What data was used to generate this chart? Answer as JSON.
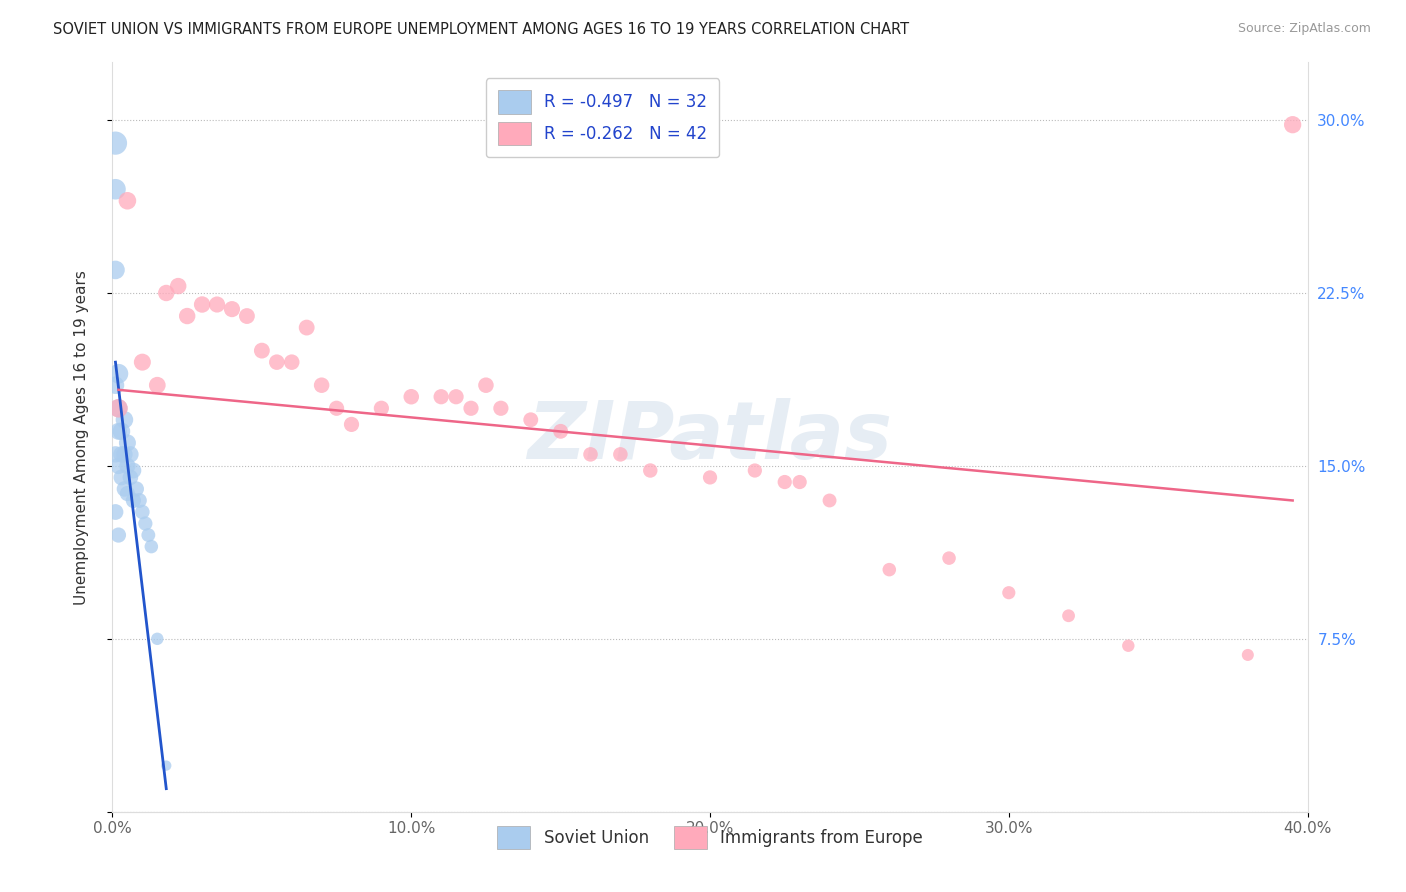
{
  "title": "SOVIET UNION VS IMMIGRANTS FROM EUROPE UNEMPLOYMENT AMONG AGES 16 TO 19 YEARS CORRELATION CHART",
  "source": "Source: ZipAtlas.com",
  "ylabel": "Unemployment Among Ages 16 to 19 years",
  "xlim": [
    0.0,
    0.4
  ],
  "ylim": [
    0.0,
    0.325
  ],
  "xticks": [
    0.0,
    0.1,
    0.2,
    0.3,
    0.4
  ],
  "xticklabels": [
    "0.0%",
    "10.0%",
    "20.0%",
    "30.0%",
    "40.0%"
  ],
  "yticks": [
    0.0,
    0.075,
    0.15,
    0.225,
    0.3
  ],
  "yticklabels_right": [
    "",
    "7.5%",
    "15.0%",
    "22.5%",
    "30.0%"
  ],
  "legend1_label": "R = -0.497   N = 32",
  "legend2_label": "R = -0.262   N = 42",
  "legend_bottom1": "Soviet Union",
  "legend_bottom2": "Immigrants from Europe",
  "blue_color": "#AACCEE",
  "pink_color": "#FFAABB",
  "blue_line_color": "#2255CC",
  "pink_line_color": "#EE6688",
  "watermark": "ZIPatlas",
  "soviet_x": [
    0.001,
    0.001,
    0.001,
    0.001,
    0.001,
    0.001,
    0.002,
    0.002,
    0.002,
    0.002,
    0.002,
    0.003,
    0.003,
    0.003,
    0.004,
    0.004,
    0.004,
    0.005,
    0.005,
    0.005,
    0.006,
    0.006,
    0.007,
    0.007,
    0.008,
    0.009,
    0.01,
    0.011,
    0.012,
    0.013,
    0.015,
    0.018
  ],
  "soviet_y": [
    0.29,
    0.27,
    0.235,
    0.185,
    0.155,
    0.13,
    0.19,
    0.175,
    0.165,
    0.15,
    0.12,
    0.165,
    0.155,
    0.145,
    0.17,
    0.155,
    0.14,
    0.16,
    0.15,
    0.138,
    0.155,
    0.145,
    0.148,
    0.135,
    0.14,
    0.135,
    0.13,
    0.125,
    0.12,
    0.115,
    0.075,
    0.02
  ],
  "soviet_sizes": [
    280,
    220,
    180,
    160,
    140,
    130,
    200,
    170,
    150,
    140,
    120,
    160,
    140,
    130,
    160,
    140,
    125,
    150,
    135,
    120,
    140,
    125,
    130,
    120,
    120,
    115,
    110,
    105,
    100,
    95,
    80,
    55
  ],
  "europe_x": [
    0.002,
    0.005,
    0.01,
    0.015,
    0.018,
    0.022,
    0.025,
    0.03,
    0.035,
    0.04,
    0.045,
    0.05,
    0.055,
    0.06,
    0.065,
    0.07,
    0.075,
    0.08,
    0.09,
    0.1,
    0.11,
    0.115,
    0.12,
    0.125,
    0.13,
    0.14,
    0.15,
    0.16,
    0.17,
    0.18,
    0.2,
    0.215,
    0.225,
    0.23,
    0.24,
    0.26,
    0.28,
    0.3,
    0.32,
    0.34,
    0.38,
    0.395
  ],
  "europe_y": [
    0.175,
    0.265,
    0.195,
    0.185,
    0.225,
    0.228,
    0.215,
    0.22,
    0.22,
    0.218,
    0.215,
    0.2,
    0.195,
    0.195,
    0.21,
    0.185,
    0.175,
    0.168,
    0.175,
    0.18,
    0.18,
    0.18,
    0.175,
    0.185,
    0.175,
    0.17,
    0.165,
    0.155,
    0.155,
    0.148,
    0.145,
    0.148,
    0.143,
    0.143,
    0.135,
    0.105,
    0.11,
    0.095,
    0.085,
    0.072,
    0.068,
    0.298
  ],
  "europe_sizes": [
    180,
    160,
    150,
    145,
    140,
    140,
    140,
    140,
    135,
    135,
    130,
    130,
    125,
    125,
    130,
    125,
    120,
    120,
    120,
    125,
    120,
    120,
    120,
    125,
    120,
    115,
    115,
    110,
    110,
    108,
    105,
    105,
    105,
    105,
    100,
    95,
    95,
    90,
    85,
    80,
    75,
    155
  ],
  "pink_line_x_start": 0.002,
  "pink_line_x_end": 0.395,
  "pink_line_y_start": 0.183,
  "pink_line_y_end": 0.135,
  "blue_line_x_start": 0.001,
  "blue_line_x_end": 0.018,
  "blue_line_y_start": 0.195,
  "blue_line_y_end": 0.01
}
